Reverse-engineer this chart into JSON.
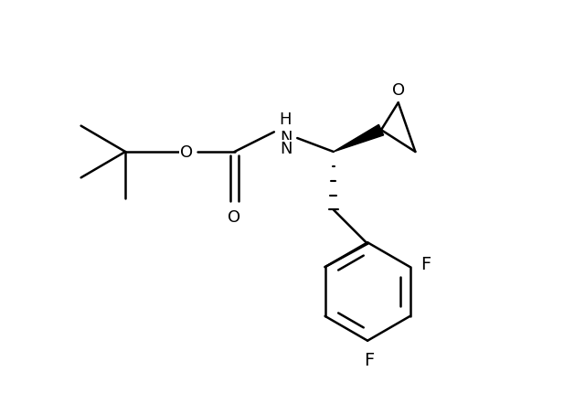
{
  "background_color": "#ffffff",
  "line_color": "#000000",
  "lw": 1.8,
  "fs": 13,
  "figsize": [
    6.4,
    4.31
  ],
  "dpi": 100,
  "xlim": [
    0.0,
    8.5
  ],
  "ylim": [
    0.0,
    5.5
  ]
}
